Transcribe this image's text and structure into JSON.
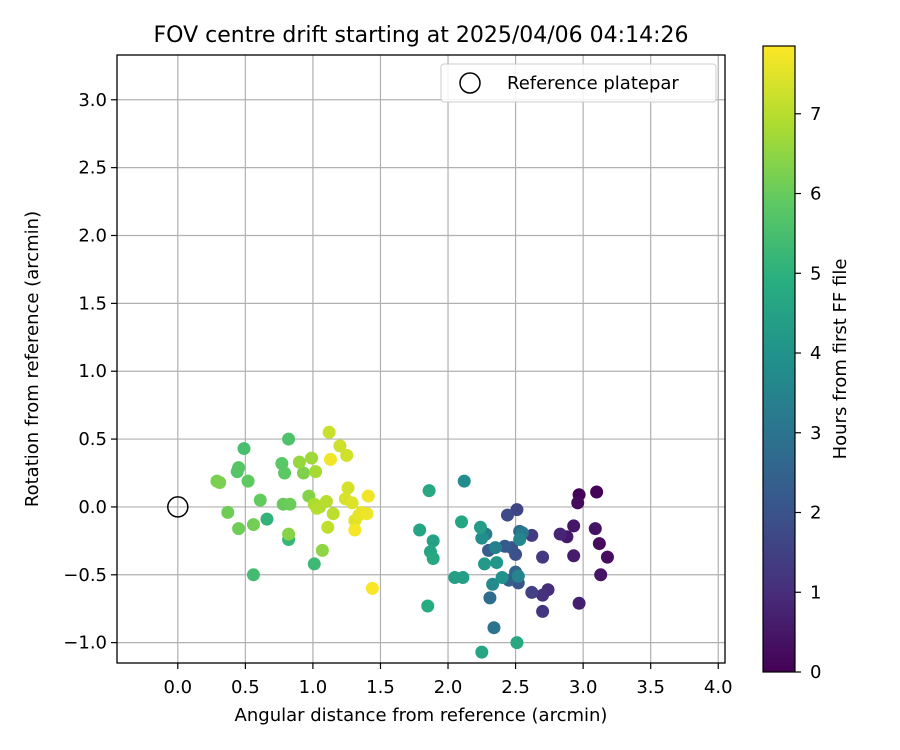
{
  "chart_data": {
    "type": "scatter",
    "title": "FOV centre drift starting at 2025/04/06 04:14:26",
    "xlabel": "Angular distance from reference (arcmin)",
    "ylabel": "Rotation from reference (arcmin)",
    "xlim": [
      -0.45,
      4.05
    ],
    "ylim": [
      -1.15,
      3.33
    ],
    "xticks": [
      0.0,
      0.5,
      1.0,
      1.5,
      2.0,
      2.5,
      3.0,
      3.5,
      4.0
    ],
    "yticks": [
      -1.0,
      -0.5,
      0.0,
      0.5,
      1.0,
      1.5,
      2.0,
      2.5,
      3.0
    ],
    "x_tick_labels": [
      "0.0",
      "0.5",
      "1.0",
      "1.5",
      "2.0",
      "2.5",
      "3.0",
      "3.5",
      "4.0"
    ],
    "y_tick_labels": [
      "−1.0",
      "−0.5",
      "0.0",
      "0.5",
      "1.0",
      "1.5",
      "2.0",
      "2.5",
      "3.0"
    ],
    "grid": true,
    "legend": {
      "position": "top-right",
      "entries": [
        "Reference platepar"
      ]
    },
    "reference_point": {
      "x": 0.0,
      "y": 0.0
    },
    "colorbar": {
      "label": "Hours from first FF file",
      "min": 0,
      "max": 7.85,
      "ticks": [
        0,
        1,
        2,
        3,
        4,
        5,
        6,
        7
      ],
      "tick_labels": [
        "0",
        "1",
        "2",
        "3",
        "4",
        "5",
        "6",
        "7"
      ],
      "colormap": "viridis"
    },
    "points": [
      {
        "x": 2.97,
        "y": 0.09,
        "t": 0.05
      },
      {
        "x": 3.1,
        "y": 0.11,
        "t": 0.1
      },
      {
        "x": 2.96,
        "y": 0.03,
        "t": 0.2
      },
      {
        "x": 3.12,
        "y": -0.27,
        "t": 0.25
      },
      {
        "x": 3.18,
        "y": -0.37,
        "t": 0.3
      },
      {
        "x": 3.09,
        "y": -0.16,
        "t": 0.4
      },
      {
        "x": 2.93,
        "y": -0.14,
        "t": 0.5
      },
      {
        "x": 2.88,
        "y": -0.22,
        "t": 0.55
      },
      {
        "x": 2.93,
        "y": -0.36,
        "t": 0.6
      },
      {
        "x": 3.13,
        "y": -0.5,
        "t": 0.45
      },
      {
        "x": 2.97,
        "y": -0.71,
        "t": 0.7
      },
      {
        "x": 2.83,
        "y": -0.2,
        "t": 0.8
      },
      {
        "x": 2.74,
        "y": -0.61,
        "t": 1.0
      },
      {
        "x": 2.7,
        "y": -0.65,
        "t": 1.1
      },
      {
        "x": 2.7,
        "y": -0.77,
        "t": 1.2
      },
      {
        "x": 2.7,
        "y": -0.37,
        "t": 1.3
      },
      {
        "x": 2.62,
        "y": -0.21,
        "t": 1.4
      },
      {
        "x": 2.62,
        "y": -0.63,
        "t": 1.5
      },
      {
        "x": 2.51,
        "y": -0.02,
        "t": 1.6
      },
      {
        "x": 2.44,
        "y": -0.06,
        "t": 1.8
      },
      {
        "x": 2.5,
        "y": -0.35,
        "t": 1.9
      },
      {
        "x": 2.47,
        "y": -0.3,
        "t": 2.0
      },
      {
        "x": 2.42,
        "y": -0.29,
        "t": 2.2
      },
      {
        "x": 2.3,
        "y": -0.32,
        "t": 2.3
      },
      {
        "x": 2.52,
        "y": -0.56,
        "t": 2.1
      },
      {
        "x": 2.45,
        "y": -0.54,
        "t": 2.4
      },
      {
        "x": 2.5,
        "y": -0.48,
        "t": 2.5
      },
      {
        "x": 2.53,
        "y": -0.18,
        "t": 2.7
      },
      {
        "x": 2.31,
        "y": -0.67,
        "t": 2.8
      },
      {
        "x": 2.34,
        "y": -0.89,
        "t": 3.0
      },
      {
        "x": 2.55,
        "y": -0.19,
        "t": 3.2
      },
      {
        "x": 2.28,
        "y": -0.2,
        "t": 3.3
      },
      {
        "x": 2.35,
        "y": -0.3,
        "t": 3.4
      },
      {
        "x": 2.52,
        "y": -0.51,
        "t": 3.5
      },
      {
        "x": 2.53,
        "y": -0.24,
        "t": 3.6
      },
      {
        "x": 2.12,
        "y": 0.19,
        "t": 3.8
      },
      {
        "x": 2.25,
        "y": -0.23,
        "t": 3.9
      },
      {
        "x": 2.33,
        "y": -0.57,
        "t": 3.7
      },
      {
        "x": 2.4,
        "y": -0.52,
        "t": 4.0
      },
      {
        "x": 2.36,
        "y": -0.41,
        "t": 4.1
      },
      {
        "x": 2.27,
        "y": -0.42,
        "t": 4.2
      },
      {
        "x": 2.24,
        "y": -0.15,
        "t": 4.3
      },
      {
        "x": 2.11,
        "y": -0.52,
        "t": 4.35
      },
      {
        "x": 2.05,
        "y": -0.52,
        "t": 4.4
      },
      {
        "x": 1.89,
        "y": -0.25,
        "t": 4.5
      },
      {
        "x": 1.87,
        "y": -0.33,
        "t": 4.6
      },
      {
        "x": 1.89,
        "y": -0.38,
        "t": 4.7
      },
      {
        "x": 1.79,
        "y": -0.17,
        "t": 4.6
      },
      {
        "x": 2.1,
        "y": -0.11,
        "t": 4.65
      },
      {
        "x": 2.51,
        "y": -1.0,
        "t": 4.7
      },
      {
        "x": 2.25,
        "y": -1.07,
        "t": 4.6
      },
      {
        "x": 1.86,
        "y": 0.12,
        "t": 4.7
      },
      {
        "x": 1.85,
        "y": -0.73,
        "t": 4.8
      },
      {
        "x": 0.66,
        "y": -0.09,
        "t": 5.1
      },
      {
        "x": 0.82,
        "y": -0.24,
        "t": 5.2
      },
      {
        "x": 1.01,
        "y": -0.42,
        "t": 5.3
      },
      {
        "x": 0.56,
        "y": -0.5,
        "t": 5.4
      },
      {
        "x": 0.49,
        "y": 0.43,
        "t": 5.5
      },
      {
        "x": 0.82,
        "y": 0.5,
        "t": 5.6
      },
      {
        "x": 0.44,
        "y": 0.26,
        "t": 5.7
      },
      {
        "x": 0.45,
        "y": 0.29,
        "t": 5.75
      },
      {
        "x": 0.77,
        "y": 0.32,
        "t": 5.8
      },
      {
        "x": 0.79,
        "y": 0.25,
        "t": 5.85
      },
      {
        "x": 0.52,
        "y": 0.19,
        "t": 5.9
      },
      {
        "x": 0.61,
        "y": 0.05,
        "t": 5.95
      },
      {
        "x": 0.78,
        "y": 0.02,
        "t": 6.0
      },
      {
        "x": 0.83,
        "y": 0.02,
        "t": 6.05
      },
      {
        "x": 0.37,
        "y": -0.04,
        "t": 6.1
      },
      {
        "x": 0.45,
        "y": -0.16,
        "t": 6.1
      },
      {
        "x": 0.56,
        "y": -0.13,
        "t": 6.15
      },
      {
        "x": 0.29,
        "y": 0.19,
        "t": 6.2
      },
      {
        "x": 0.31,
        "y": 0.18,
        "t": 6.25
      },
      {
        "x": 0.93,
        "y": 0.25,
        "t": 6.3
      },
      {
        "x": 0.97,
        "y": 0.08,
        "t": 6.35
      },
      {
        "x": 0.82,
        "y": -0.2,
        "t": 6.4
      },
      {
        "x": 1.07,
        "y": -0.32,
        "t": 6.5
      },
      {
        "x": 0.9,
        "y": 0.33,
        "t": 6.6
      },
      {
        "x": 0.99,
        "y": 0.36,
        "t": 6.7
      },
      {
        "x": 1.02,
        "y": 0.26,
        "t": 6.8
      },
      {
        "x": 1.01,
        "y": 0.02,
        "t": 6.85
      },
      {
        "x": 1.05,
        "y": 0.0,
        "t": 6.9
      },
      {
        "x": 1.03,
        "y": -0.01,
        "t": 6.95
      },
      {
        "x": 1.1,
        "y": 0.04,
        "t": 7.0
      },
      {
        "x": 1.15,
        "y": -0.05,
        "t": 7.05
      },
      {
        "x": 1.11,
        "y": -0.15,
        "t": 7.1
      },
      {
        "x": 1.12,
        "y": 0.55,
        "t": 7.2
      },
      {
        "x": 1.2,
        "y": 0.45,
        "t": 7.25
      },
      {
        "x": 1.25,
        "y": 0.38,
        "t": 7.3
      },
      {
        "x": 1.26,
        "y": 0.14,
        "t": 7.35
      },
      {
        "x": 1.24,
        "y": 0.06,
        "t": 7.4
      },
      {
        "x": 1.29,
        "y": 0.03,
        "t": 7.45
      },
      {
        "x": 1.31,
        "y": -0.1,
        "t": 7.5
      },
      {
        "x": 1.34,
        "y": -0.06,
        "t": 7.55
      },
      {
        "x": 1.36,
        "y": -0.04,
        "t": 7.6
      },
      {
        "x": 1.4,
        "y": -0.05,
        "t": 7.65
      },
      {
        "x": 1.41,
        "y": 0.08,
        "t": 7.7
      },
      {
        "x": 1.13,
        "y": 0.35,
        "t": 7.7
      },
      {
        "x": 1.31,
        "y": -0.17,
        "t": 7.75
      },
      {
        "x": 1.44,
        "y": -0.6,
        "t": 7.8
      }
    ]
  }
}
